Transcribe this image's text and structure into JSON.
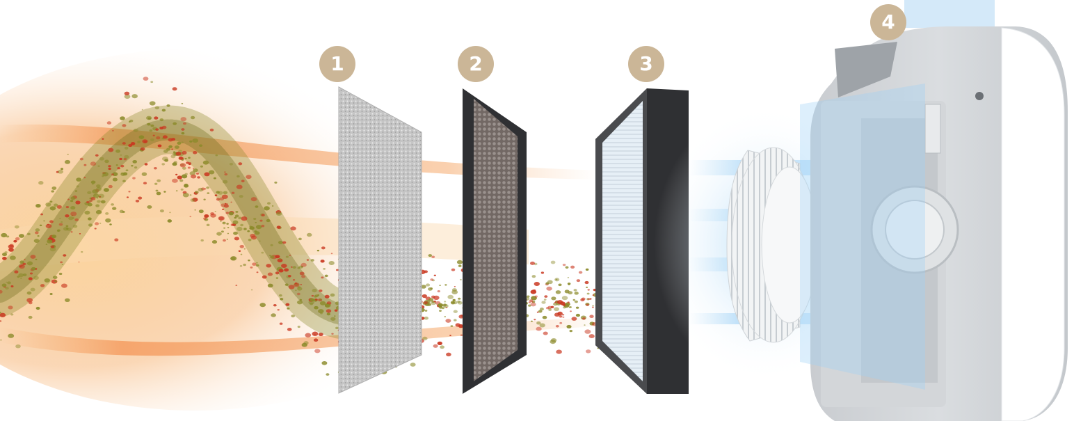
{
  "steps": [
    {
      "number": "1",
      "icon": "pre-filter-icon"
    },
    {
      "number": "2",
      "icon": "carbon-filter-icon"
    },
    {
      "number": "3",
      "icon": "hepa-filter-icon"
    },
    {
      "number": "4",
      "icon": "purifier-unit-icon"
    }
  ],
  "colors": {
    "badge_background": "#cbb697",
    "badge_text": "#ffffff",
    "polluted_air_warm": "#f29a52",
    "particle_red": "#c9361f",
    "particle_olive": "#8b8a2a",
    "clean_air_blue": "#9fd0f5",
    "filter_frame": "#3a3b3d",
    "purifier_body": "#e6e8ea"
  }
}
